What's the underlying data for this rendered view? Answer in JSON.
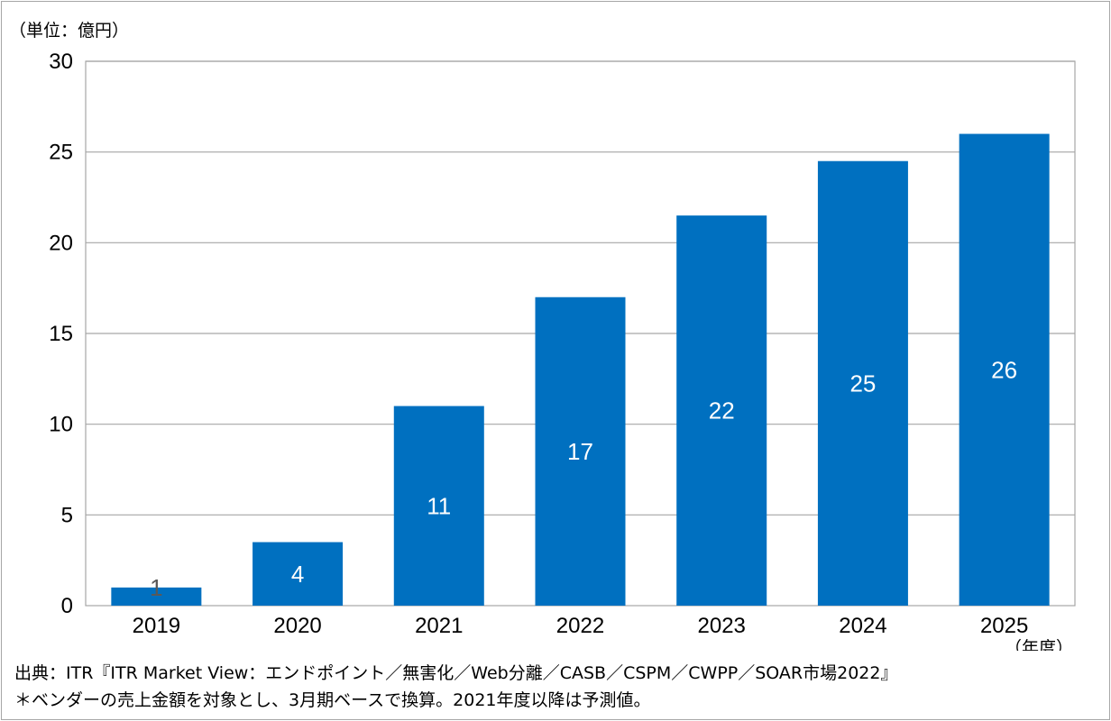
{
  "chart_data": {
    "type": "bar",
    "unit_label": "（単位：億円）",
    "categories": [
      "2019",
      "2020",
      "2021",
      "2022",
      "2023",
      "2024",
      "2025"
    ],
    "values": [
      1.0,
      3.5,
      11.0,
      17.0,
      21.5,
      24.5,
      26.0
    ],
    "data_labels": [
      "1",
      "4",
      "11",
      "17",
      "22",
      "25",
      "26"
    ],
    "xlabel": "（年度）",
    "ylabel": "",
    "ylim": [
      0,
      30
    ],
    "yticks": [
      0,
      5,
      10,
      15,
      20,
      25,
      30
    ],
    "grid": true,
    "bar_color": "#0070c0",
    "label_color_inside": "#ffffff",
    "label_color_outside": "#595959"
  },
  "footer": {
    "source": "出典：ITR『ITR Market View：エンドポイント／無害化／Web分離／CASB／CSPM／CWPP／SOAR市場2022』",
    "note": "＊ベンダーの売上金額を対象とし、3月期ベースで換算。2021年度以降は予測値。"
  }
}
